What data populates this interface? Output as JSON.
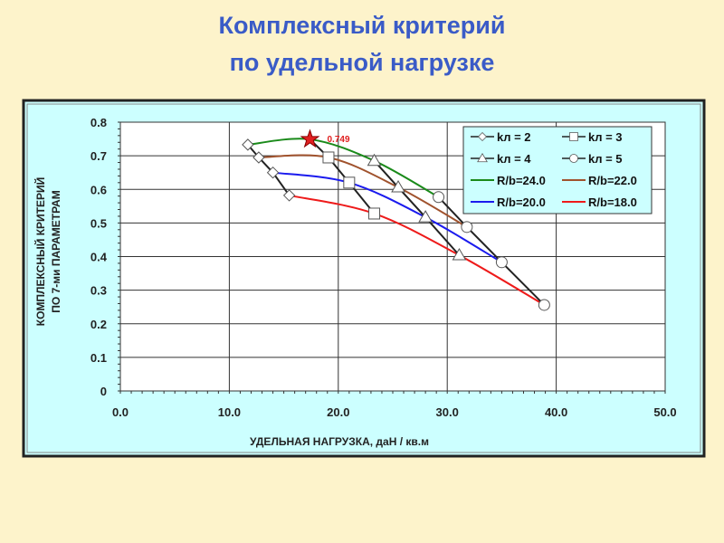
{
  "slide": {
    "title_line1": "Комплексный критерий",
    "title_line2": "по удельной нагрузке"
  },
  "chart_data": {
    "type": "line",
    "xlabel": "УДЕЛЬНАЯ НАГРУЗКА, даН / кв.м",
    "ylabel_line1": "КОМПЛЕКСНЫЙ КРИТЕРИЙ",
    "ylabel_line2": "ПО 7-ми ПАРАМЕТРАМ",
    "xlim": [
      0,
      50
    ],
    "ylim": [
      0,
      0.8
    ],
    "xticks": [
      "0.0",
      "10.0",
      "20.0",
      "30.0",
      "40.0",
      "50.0"
    ],
    "yticks": [
      "0",
      "0.1",
      "0.2",
      "0.3",
      "0.4",
      "0.5",
      "0.6",
      "0.7",
      "0.8"
    ],
    "grid": true,
    "legend_position": "top-right",
    "background": "#ccffff",
    "marker_series": [
      {
        "name": "kл = 2",
        "marker": "diamond",
        "x": [
          11.7,
          12.7,
          14.0,
          15.5
        ],
        "y": [
          0.733,
          0.695,
          0.65,
          0.582
        ]
      },
      {
        "name": "kл = 3",
        "marker": "square",
        "x": [
          17.4,
          19.1,
          21.0,
          23.3
        ],
        "y": [
          0.749,
          0.695,
          0.62,
          0.528
        ]
      },
      {
        "name": "kл = 4",
        "marker": "triangle",
        "x": [
          23.3,
          25.5,
          28.0,
          31.1
        ],
        "y": [
          0.685,
          0.606,
          0.517,
          0.404
        ]
      },
      {
        "name": "kл = 5",
        "marker": "circle",
        "x": [
          29.2,
          31.8,
          35.0,
          38.9
        ],
        "y": [
          0.577,
          0.488,
          0.383,
          0.256
        ]
      }
    ],
    "line_series": [
      {
        "name": "R/b=24.0",
        "color": "#1a8a1a",
        "x": [
          11.7,
          17.4,
          23.3,
          29.2
        ],
        "y": [
          0.733,
          0.749,
          0.685,
          0.577
        ]
      },
      {
        "name": "R/b=22.0",
        "color": "#a0522d",
        "x": [
          12.7,
          19.1,
          25.5,
          31.8
        ],
        "y": [
          0.695,
          0.695,
          0.606,
          0.488
        ]
      },
      {
        "name": "R/b=20.0",
        "color": "#1a1aee",
        "x": [
          14.0,
          21.0,
          28.0,
          35.0
        ],
        "y": [
          0.65,
          0.62,
          0.517,
          0.383
        ]
      },
      {
        "name": "R/b=18.0",
        "color": "#ee1a1a",
        "x": [
          15.5,
          23.3,
          31.1,
          38.9
        ],
        "y": [
          0.582,
          0.528,
          0.404,
          0.256
        ]
      }
    ],
    "annotation": {
      "label": "0.749",
      "x": 17.4,
      "y": 0.749,
      "marker": "star",
      "color": "#e02020"
    }
  }
}
